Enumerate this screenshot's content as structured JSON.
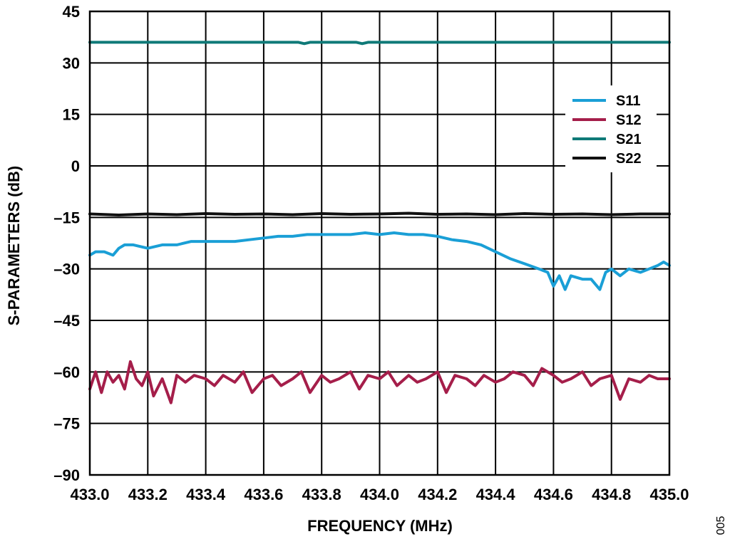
{
  "chart_data": {
    "type": "line",
    "xlabel": "FREQUENCY (MHz)",
    "ylabel": "S-PARAMETERS (dB)",
    "xlim": [
      433.0,
      435.0
    ],
    "ylim": [
      -90,
      45
    ],
    "xticks": [
      433.0,
      433.2,
      433.4,
      433.6,
      433.8,
      434.0,
      434.2,
      434.4,
      434.6,
      434.8,
      435.0
    ],
    "xtick_labels": [
      "433.0",
      "433.2",
      "433.4",
      "433.6",
      "433.8",
      "434.0",
      "434.2",
      "434.4",
      "434.6",
      "434.8",
      "435.0"
    ],
    "yticks": [
      45,
      30,
      15,
      0,
      -15,
      -30,
      -45,
      -60,
      -75,
      -90
    ],
    "ytick_labels": [
      "45",
      "30",
      "15",
      "0",
      "–15",
      "–30",
      "–45",
      "–60",
      "–75",
      "–90"
    ],
    "grid": true,
    "legend_position": "upper-right",
    "series": [
      {
        "name": "S11",
        "color": "#1a9fd6",
        "x": [
          433.0,
          433.02,
          433.05,
          433.08,
          433.1,
          433.12,
          433.15,
          433.2,
          433.25,
          433.3,
          433.35,
          433.4,
          433.45,
          433.5,
          433.55,
          433.6,
          433.65,
          433.7,
          433.75,
          433.8,
          433.85,
          433.9,
          433.95,
          434.0,
          434.05,
          434.1,
          434.15,
          434.2,
          434.25,
          434.3,
          434.35,
          434.4,
          434.45,
          434.5,
          434.55,
          434.58,
          434.6,
          434.62,
          434.64,
          434.66,
          434.7,
          434.73,
          434.76,
          434.78,
          434.8,
          434.83,
          434.86,
          434.9,
          434.93,
          434.96,
          434.98,
          435.0
        ],
        "values": [
          -26,
          -25,
          -25,
          -26,
          -24,
          -23,
          -23,
          -24,
          -23,
          -23,
          -22,
          -22,
          -22,
          -22,
          -21.5,
          -21,
          -20.5,
          -20.5,
          -20,
          -20,
          -20,
          -20,
          -19.5,
          -20,
          -19.5,
          -20,
          -20,
          -20.5,
          -21.5,
          -22,
          -23,
          -25,
          -27,
          -28.5,
          -30,
          -31,
          -35,
          -32,
          -36,
          -32,
          -33,
          -33,
          -36,
          -31,
          -30,
          -32,
          -30,
          -31,
          -30,
          -29,
          -28,
          -29
        ]
      },
      {
        "name": "S12",
        "color": "#a51e4a",
        "x": [
          433.0,
          433.02,
          433.04,
          433.06,
          433.08,
          433.1,
          433.12,
          433.14,
          433.16,
          433.18,
          433.2,
          433.22,
          433.25,
          433.28,
          433.3,
          433.33,
          433.36,
          433.4,
          433.43,
          433.46,
          433.5,
          433.53,
          433.56,
          433.6,
          433.63,
          433.66,
          433.7,
          433.73,
          433.76,
          433.8,
          433.83,
          433.86,
          433.9,
          433.93,
          433.96,
          434.0,
          434.03,
          434.06,
          434.1,
          434.13,
          434.16,
          434.2,
          434.23,
          434.26,
          434.3,
          434.33,
          434.36,
          434.4,
          434.43,
          434.46,
          434.5,
          434.53,
          434.56,
          434.6,
          434.63,
          434.66,
          434.7,
          434.73,
          434.76,
          434.8,
          434.83,
          434.86,
          434.9,
          434.93,
          434.96,
          435.0
        ],
        "values": [
          -65,
          -60,
          -66,
          -60,
          -63,
          -61,
          -65,
          -57,
          -62,
          -64,
          -60,
          -67,
          -62,
          -69,
          -61,
          -63,
          -61,
          -62,
          -64,
          -61,
          -63,
          -60,
          -66,
          -62,
          -61,
          -64,
          -62,
          -60,
          -66,
          -61,
          -63,
          -62,
          -60,
          -65,
          -61,
          -62,
          -60,
          -64,
          -61,
          -63,
          -62,
          -60,
          -66,
          -61,
          -62,
          -64,
          -61,
          -63,
          -62,
          -60,
          -61,
          -64,
          -59,
          -61,
          -63,
          -62,
          -60,
          -64,
          -62,
          -61,
          -68,
          -62,
          -63,
          -61,
          -62,
          -62
        ]
      },
      {
        "name": "S21",
        "color": "#0f7a78",
        "x": [
          433.0,
          433.72,
          433.74,
          433.76,
          433.92,
          433.94,
          433.96,
          435.0
        ],
        "values": [
          36,
          36,
          35.6,
          36,
          36,
          35.6,
          36,
          36
        ]
      },
      {
        "name": "S22",
        "color": "#111111",
        "x": [
          433.0,
          433.1,
          433.2,
          433.3,
          433.4,
          433.5,
          433.6,
          433.7,
          433.8,
          433.9,
          434.0,
          434.1,
          434.2,
          434.3,
          434.4,
          434.5,
          434.6,
          434.7,
          434.8,
          434.9,
          435.0
        ],
        "values": [
          -14,
          -14.3,
          -14,
          -14.2,
          -13.9,
          -14.1,
          -14,
          -14.2,
          -13.9,
          -14.1,
          -14,
          -13.8,
          -14.1,
          -14,
          -14.2,
          -13.9,
          -14.1,
          -14,
          -14.2,
          -14,
          -14
        ]
      }
    ]
  },
  "figure_id": "005"
}
